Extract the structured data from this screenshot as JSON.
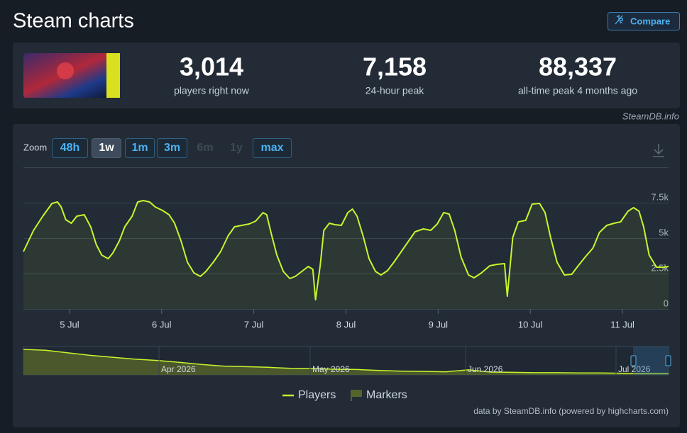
{
  "header": {
    "title": "Steam charts",
    "compare": "Compare"
  },
  "stats": [
    {
      "value": "3,014",
      "label": "players right now"
    },
    {
      "value": "7,158",
      "label": "24-hour peak"
    },
    {
      "value": "88,337",
      "label": "all-time peak 4 months ago"
    }
  ],
  "source": "SteamDB.info",
  "zoom": {
    "label": "Zoom",
    "options": [
      "48h",
      "1w",
      "1m",
      "3m",
      "6m",
      "1y",
      "max"
    ],
    "active": 1,
    "disabled": [
      4,
      5
    ]
  },
  "chart_data": {
    "type": "line",
    "x": [
      4.5,
      4.61,
      4.71,
      4.81,
      4.87,
      4.91,
      4.96,
      5.02,
      5.08,
      5.16,
      5.23,
      5.29,
      5.35,
      5.42,
      5.47,
      5.54,
      5.6,
      5.68,
      5.74,
      5.8,
      5.87,
      5.93,
      6.01,
      6.08,
      6.14,
      6.21,
      6.28,
      6.35,
      6.42,
      6.48,
      6.56,
      6.64,
      6.72,
      6.79,
      6.87,
      6.95,
      7.02,
      7.1,
      7.14,
      7.19,
      7.25,
      7.32,
      7.39,
      7.45,
      7.52,
      7.59,
      7.64,
      7.67,
      7.72,
      7.76,
      7.82,
      7.88,
      7.95,
      8.02,
      8.07,
      8.12,
      8.19,
      8.25,
      8.32,
      8.38,
      8.45,
      8.52,
      8.6,
      8.68,
      8.75,
      8.84,
      8.92,
      8.99,
      9.06,
      9.12,
      9.18,
      9.25,
      9.33,
      9.39,
      9.47,
      9.56,
      9.64,
      9.72,
      9.75,
      9.81,
      9.87,
      9.95,
      10.02,
      10.1,
      10.16,
      10.22,
      10.29,
      10.37,
      10.45,
      10.52,
      10.6,
      10.68,
      10.75,
      10.83,
      10.91,
      10.98,
      11.06,
      11.12,
      11.18,
      11.23,
      11.29,
      11.37,
      11.45,
      11.5
    ],
    "series": [
      {
        "name": "Players",
        "color": "#c8f52c",
        "values": [
          4050,
          5550,
          6550,
          7450,
          7550,
          7200,
          6300,
          6050,
          6550,
          6650,
          5800,
          4550,
          3800,
          3550,
          3950,
          4800,
          5800,
          6550,
          7550,
          7650,
          7550,
          7200,
          6950,
          6650,
          6050,
          4800,
          3300,
          2550,
          2300,
          2650,
          3300,
          4050,
          5150,
          5800,
          5900,
          6000,
          6200,
          6800,
          6650,
          5300,
          3800,
          2650,
          2150,
          2300,
          2650,
          3000,
          2800,
          650,
          3050,
          5550,
          6050,
          5950,
          5900,
          6800,
          7050,
          6550,
          5050,
          3550,
          2650,
          2400,
          2700,
          3300,
          4050,
          4800,
          5450,
          5650,
          5550,
          6000,
          6800,
          6700,
          5550,
          3650,
          2400,
          2200,
          2550,
          3050,
          3150,
          3200,
          900,
          5050,
          6150,
          6250,
          7400,
          7450,
          6800,
          5050,
          3300,
          2400,
          2450,
          3050,
          3700,
          4300,
          5400,
          5900,
          6050,
          6150,
          6900,
          7150,
          6900,
          5800,
          3800,
          2950,
          2950,
          3000
        ]
      }
    ],
    "xlim": [
      4.5,
      11.5
    ],
    "xticks": [
      {
        "value": 5,
        "label": "5 Jul"
      },
      {
        "value": 6,
        "label": "6 Jul"
      },
      {
        "value": 7,
        "label": "7 Jul"
      },
      {
        "value": 8,
        "label": "8 Jul"
      },
      {
        "value": 9,
        "label": "9 Jul"
      },
      {
        "value": 10,
        "label": "10 Jul"
      },
      {
        "value": 11,
        "label": "11 Jul"
      }
    ],
    "ylim": [
      0,
      10000
    ],
    "yticks": [
      0,
      {
        "value": 2500,
        "label": "2.5k"
      },
      {
        "value": 5000,
        "label": "5k"
      },
      {
        "value": 7500,
        "label": "7.5k"
      }
    ],
    "grid": true
  },
  "navigator": {
    "labels": [
      "Apr 2026",
      "May 2026",
      "Jun 2026",
      "Jul 2026"
    ],
    "values": [
      81000,
      78000,
      70000,
      62000,
      56000,
      50000,
      46000,
      40000,
      33000,
      28000,
      26000,
      24000,
      21000,
      20000,
      18000,
      17000,
      14000,
      12000,
      11000,
      10000,
      16000,
      9000,
      8000,
      7000,
      7000,
      6000,
      6000,
      5000,
      5000,
      4000
    ],
    "ylim": [
      0,
      90000
    ]
  },
  "legend_markers": "Markers",
  "credits": "data by SteamDB.info (powered by highcharts.com)"
}
